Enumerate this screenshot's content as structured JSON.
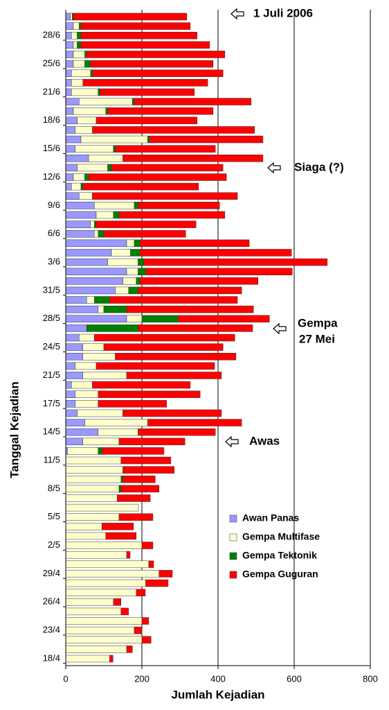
{
  "chart_data": {
    "type": "stacked-barh",
    "x_label": "Jumlah Kejadian",
    "y_label": "Tanggal Kejadian",
    "xlim": [
      0,
      800
    ],
    "xticks": [
      0,
      200,
      400,
      600,
      800
    ],
    "grid": true,
    "legend": "lower right",
    "annotations": [
      "1 Juli 2006",
      "Siaga (?)",
      "Gempa",
      "27 Mei",
      "Awas"
    ],
    "categories": [
      "18/4",
      null,
      null,
      "23/4",
      null,
      null,
      "26/4",
      null,
      null,
      "29/4",
      null,
      null,
      "2/5",
      null,
      null,
      "5/5",
      null,
      null,
      "8/5",
      null,
      null,
      "11/5",
      null,
      null,
      "14/5",
      null,
      null,
      "17/5",
      null,
      null,
      "21/5",
      null,
      null,
      "24/5",
      null,
      null,
      "28/5",
      null,
      null,
      "31/5",
      null,
      null,
      "3/6",
      null,
      null,
      "6/6",
      null,
      null,
      "9/6",
      null,
      null,
      "12/6",
      null,
      null,
      "15/6",
      null,
      null,
      "18/6",
      null,
      null,
      "21/6",
      null,
      null,
      "25/6",
      null,
      null,
      "28/6",
      null,
      null
    ],
    "series": [
      {
        "name": "Awan Panas",
        "color": "#9999ff",
        "values": [
          0,
          0,
          0,
          0,
          0,
          0,
          0,
          0,
          0,
          0,
          0,
          0,
          0,
          0,
          0,
          0,
          0,
          0,
          0,
          0,
          0,
          0,
          5,
          45,
          85,
          50,
          30,
          25,
          25,
          15,
          45,
          25,
          45,
          45,
          35,
          55,
          160,
          85,
          55,
          130,
          150,
          160,
          110,
          120,
          160,
          75,
          65,
          80,
          75,
          35,
          15,
          20,
          30,
          60,
          25,
          40,
          25,
          30,
          20,
          35,
          15,
          15,
          15,
          20,
          20,
          20,
          15,
          20,
          12
        ]
      },
      {
        "name": "Gempa Multifase",
        "color": "#ffffcc",
        "values": [
          115,
          160,
          200,
          180,
          200,
          145,
          125,
          185,
          210,
          245,
          218,
          160,
          200,
          105,
          95,
          140,
          191,
          135,
          140,
          145,
          150,
          145,
          80,
          95,
          105,
          165,
          120,
          60,
          60,
          55,
          115,
          55,
          85,
          55,
          40,
          0,
          40,
          15,
          20,
          35,
          35,
          30,
          80,
          50,
          20,
          10,
          10,
          45,
          105,
          35,
          25,
          30,
          80,
          90,
          100,
          175,
          45,
          50,
          85,
          140,
          70,
          30,
          50,
          30,
          30,
          10,
          15,
          15,
          5
        ]
      },
      {
        "name": "Gempa Tektonik",
        "color": "#008000",
        "values": [
          0,
          0,
          0,
          0,
          0,
          0,
          0,
          0,
          0,
          0,
          0,
          0,
          0,
          0,
          0,
          0,
          0,
          0,
          5,
          5,
          0,
          0,
          10,
          0,
          0,
          0,
          0,
          0,
          0,
          0,
          0,
          0,
          0,
          0,
          0,
          135,
          95,
          60,
          40,
          25,
          10,
          20,
          15,
          25,
          15,
          15,
          5,
          15,
          10,
          0,
          5,
          10,
          10,
          0,
          5,
          5,
          0,
          0,
          5,
          5,
          5,
          0,
          5,
          15,
          5,
          10,
          10,
          5,
          3
        ]
      },
      {
        "name": "Gempa Guguran",
        "color": "#ff0000",
        "values": [
          9,
          15,
          24,
          20,
          18,
          20,
          20,
          24,
          59,
          35,
          13,
          9,
          29,
          80,
          83,
          89,
          0,
          87,
          100,
          85,
          135,
          131,
          163,
          173,
          203,
          247,
          259,
          180,
          268,
          257,
          249,
          311,
          317,
          313,
          369,
          301,
          240,
          333,
          336,
          272,
          310,
          385,
          482,
          398,
          287,
          215,
          262,
          278,
          214,
          381,
          304,
          362,
          293,
          368,
          263,
          298,
          426,
          265,
          277,
          307,
          248,
          328,
          343,
          322,
          363,
          338,
          305,
          287,
          298
        ]
      }
    ]
  }
}
